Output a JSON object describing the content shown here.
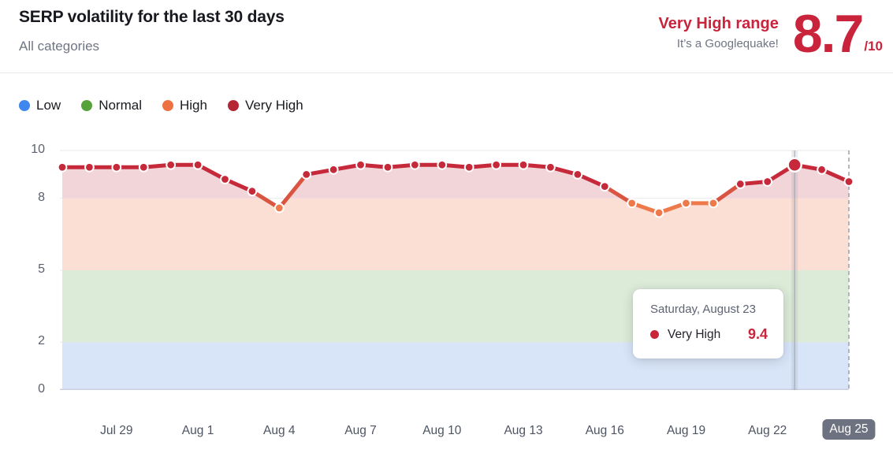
{
  "header": {
    "title": "SERP volatility for the last 30 days",
    "subtitle": "All categories",
    "range_label": "Very High range",
    "range_sub": "It’s a Googlequake!",
    "score": "8.7",
    "score_max": "/10"
  },
  "legend": [
    {
      "label": "Low",
      "color": "#3d87ee"
    },
    {
      "label": "Normal",
      "color": "#55a13a"
    },
    {
      "label": "High",
      "color": "#ee7142"
    },
    {
      "label": "Very High",
      "color": "#b52534"
    }
  ],
  "tooltip": {
    "date": "Saturday, August 23",
    "series": "Very High",
    "value": "9.4",
    "dot_color": "#c9243a"
  },
  "colors": {
    "accent_red": "#c9243c",
    "line_red": "#c5293a",
    "line_orange": "#ee7a4b",
    "line_mixed": "#d95541",
    "band_pink": "#f1d5d9",
    "band_peach": "#fcdfd4",
    "band_green": "#dcead8",
    "band_blue": "#d8e5f8",
    "grid": "#e8e9ed",
    "baseline": "#c9d0de",
    "hover_band": "rgba(130,136,148,0.15)",
    "hover_line": "#9aa0ac",
    "dashed_line": "#9aa1ac",
    "badge_bg": "#6d7280"
  },
  "chart_data": {
    "type": "line",
    "title": "SERP volatility for the last 30 days",
    "x": [
      "Jul 27",
      "Jul 28",
      "Jul 29",
      "Jul 30",
      "Jul 31",
      "Aug 1",
      "Aug 2",
      "Aug 3",
      "Aug 4",
      "Aug 5",
      "Aug 6",
      "Aug 7",
      "Aug 8",
      "Aug 9",
      "Aug 10",
      "Aug 11",
      "Aug 12",
      "Aug 13",
      "Aug 14",
      "Aug 15",
      "Aug 16",
      "Aug 17",
      "Aug 18",
      "Aug 19",
      "Aug 20",
      "Aug 21",
      "Aug 22",
      "Aug 23",
      "Aug 24",
      "Aug 25"
    ],
    "values": [
      9.3,
      9.3,
      9.3,
      9.3,
      9.4,
      9.4,
      8.8,
      8.3,
      7.6,
      9.0,
      9.2,
      9.4,
      9.3,
      9.4,
      9.4,
      9.3,
      9.4,
      9.4,
      9.3,
      9.0,
      8.5,
      7.8,
      7.4,
      7.8,
      7.8,
      8.6,
      8.7,
      9.4,
      9.2,
      8.7
    ],
    "series_name": "Very High",
    "ylim": [
      0,
      10
    ],
    "y_ticks": [
      0,
      2,
      5,
      8,
      10
    ],
    "x_tick_labels": [
      "Jul 29",
      "Aug 1",
      "Aug 4",
      "Aug 7",
      "Aug 10",
      "Aug 13",
      "Aug 16",
      "Aug 19",
      "Aug 22",
      "Aug 25"
    ],
    "x_tick_indices": [
      2,
      5,
      8,
      11,
      14,
      17,
      20,
      23,
      26,
      29
    ],
    "threshold_high": 8,
    "hover_index": 27,
    "today_index": 29,
    "legend_position": "top-left",
    "grid": true,
    "ranges": [
      {
        "label": "Low",
        "from": 0,
        "to": 2
      },
      {
        "label": "Normal",
        "from": 2,
        "to": 5
      },
      {
        "label": "High",
        "from": 5,
        "to": 8
      },
      {
        "label": "Very High",
        "from": 8,
        "to": 10
      }
    ]
  }
}
